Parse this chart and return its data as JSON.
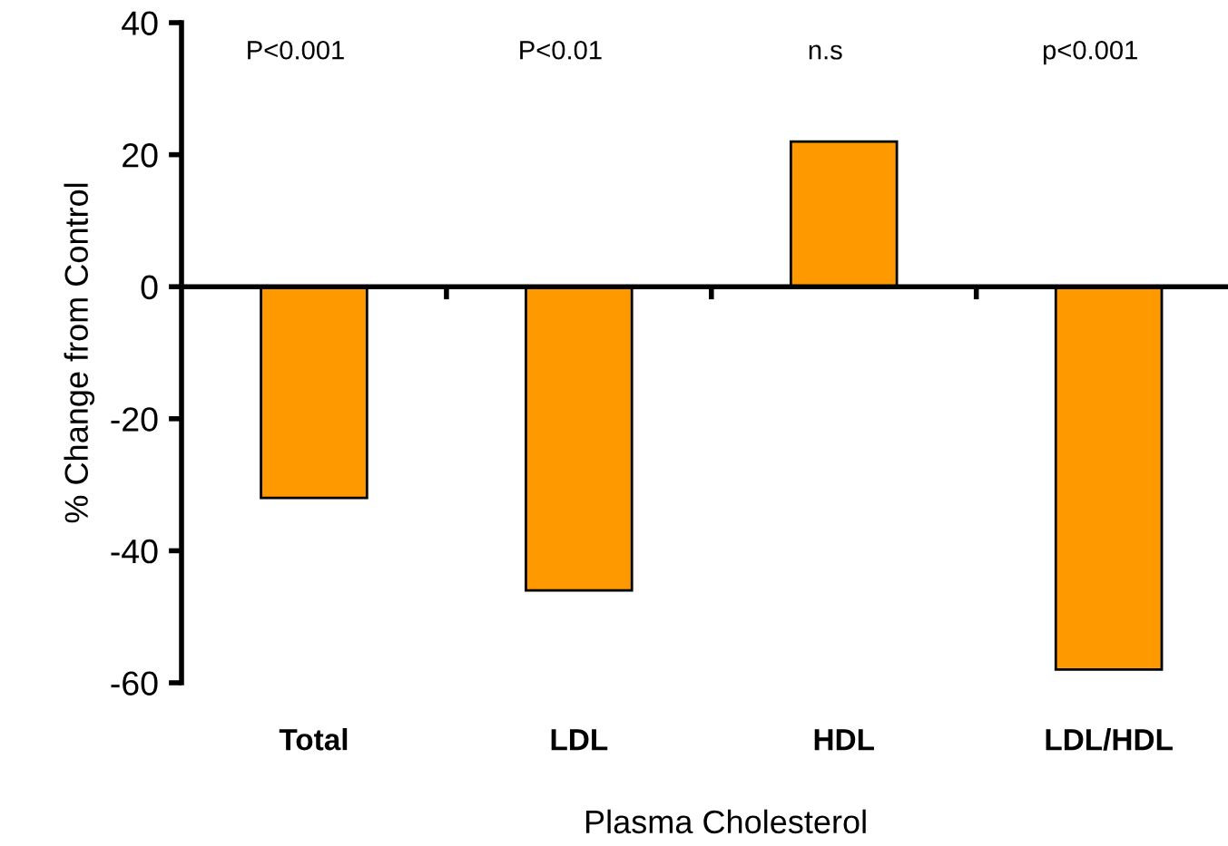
{
  "chart_data": {
    "type": "bar",
    "xlabel": "Plasma Cholesterol",
    "ylabel": "% Change from Control",
    "categories": [
      "Total",
      "LDL",
      "HDL",
      "LDL/HDL"
    ],
    "values": [
      -32,
      -46,
      22,
      -58
    ],
    "color": "#ff9900",
    "ylim": [
      -60,
      40
    ],
    "yticks": [
      -60,
      -40,
      -20,
      0,
      20,
      40
    ],
    "legend": false,
    "annotations": [
      "P<0.001",
      "P<0.01",
      "n.s",
      "p<0.001"
    ]
  }
}
